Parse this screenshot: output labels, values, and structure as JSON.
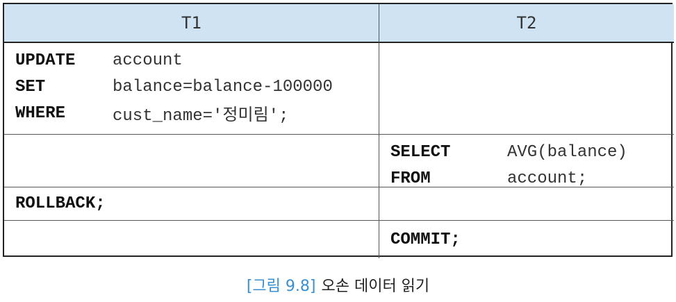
{
  "table": {
    "headers": [
      "T1",
      "T2"
    ],
    "t1_update": [
      {
        "kw": "UPDATE",
        "val": "account"
      },
      {
        "kw": "SET",
        "val": "balance=balance-100000"
      },
      {
        "kw": "WHERE",
        "val": "cust_name='정미림';"
      }
    ],
    "t2_select": [
      {
        "kw": "SELECT",
        "val": "AVG(balance)"
      },
      {
        "kw": "FROM",
        "val": "account;"
      }
    ],
    "t1_rollback": "ROLLBACK;",
    "t2_commit": "COMMIT;"
  },
  "caption": {
    "figure": "[그림 9.8]",
    "text": "오손 데이터 읽기"
  },
  "colors": {
    "header_bg": "#cfe3f2",
    "caption_figure": "#3a8fd0"
  }
}
